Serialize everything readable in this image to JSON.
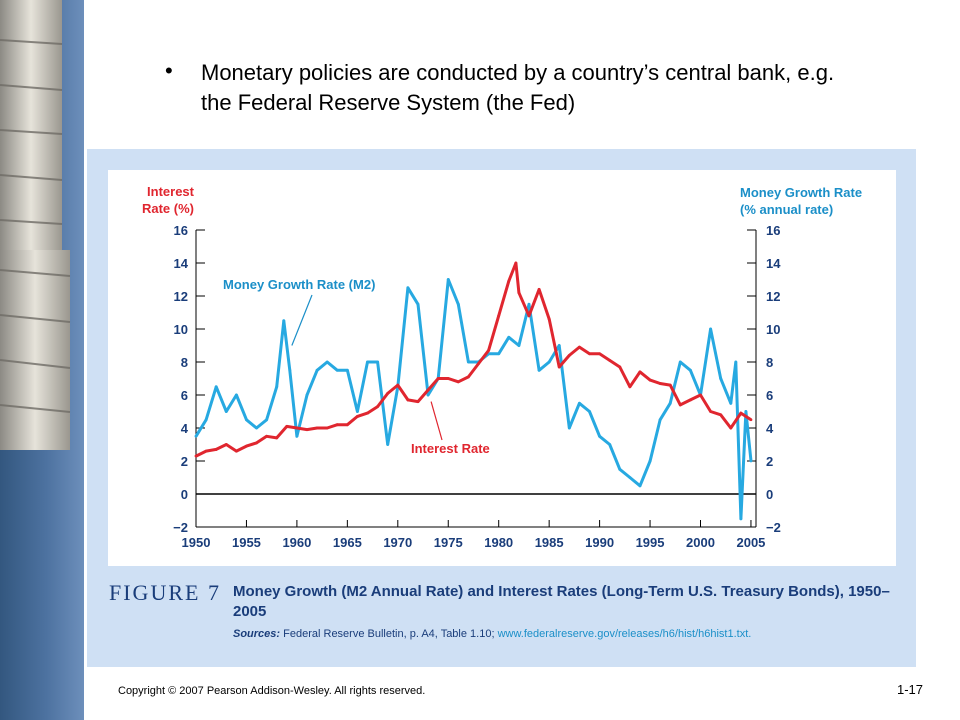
{
  "slide": {
    "bullet": "Monetary policies are conducted by a country’s  central bank, e.g. the Federal Reserve System (the Fed)",
    "copyright": "Copyright © 2007 Pearson Addison-Wesley. All rights reserved.",
    "page_number": "1-17"
  },
  "figure": {
    "label": "FIGURE 7",
    "caption": "Money Growth (M2 Annual Rate) and Interest Rates (Long-Term U.S. Treasury Bonds), 1950–2005",
    "sources_label": "Sources:",
    "sources_text": "Federal Reserve Bulletin, p. A4, Table 1.10;",
    "sources_url": "www.federalreserve.gov/releases/h6/hist/h6hist1.txt."
  },
  "colors": {
    "interest_rate": "#e0262f",
    "money_growth": "#27a9e1",
    "text": "#1a3d7a",
    "panel": "#cfe0f4"
  },
  "chart_data": {
    "type": "line",
    "left_axis_label": [
      "Interest",
      "Rate (%)"
    ],
    "right_axis_label": [
      "Money Growth Rate",
      "(% annual rate)"
    ],
    "y_ticks": [
      "16",
      "14",
      "12",
      "10",
      "8",
      "6",
      "4",
      "2",
      "0",
      "−2"
    ],
    "x_ticks": [
      "1950",
      "1955",
      "1960",
      "1965",
      "1970",
      "1975",
      "1980",
      "1985",
      "1990",
      "1995",
      "2000",
      "2005"
    ],
    "xlim": [
      1950,
      2005.5
    ],
    "ylim": [
      -2,
      16
    ],
    "zero_line": true,
    "series": [
      {
        "name": "Interest Rate",
        "x": [
          1950,
          1951,
          1952,
          1953,
          1954,
          1955,
          1956,
          1957,
          1958,
          1959,
          1960,
          1961,
          1962,
          1963,
          1964,
          1965,
          1966,
          1967,
          1968,
          1969,
          1970,
          1971,
          1972,
          1973,
          1974,
          1975,
          1976,
          1977,
          1978,
          1979,
          1980,
          1981,
          1981.7,
          1982,
          1983,
          1984,
          1985,
          1986,
          1987,
          1988,
          1989,
          1990,
          1991,
          1992,
          1993,
          1994,
          1995,
          1996,
          1997,
          1998,
          1999,
          2000,
          2001,
          2002,
          2003,
          2004,
          2005
        ],
        "values": [
          2.3,
          2.6,
          2.7,
          3.0,
          2.6,
          2.9,
          3.1,
          3.5,
          3.4,
          4.1,
          4.0,
          3.9,
          4.0,
          4.0,
          4.2,
          4.2,
          4.7,
          4.9,
          5.3,
          6.1,
          6.6,
          5.7,
          5.6,
          6.3,
          7.0,
          7.0,
          6.8,
          7.1,
          7.9,
          8.7,
          10.8,
          12.9,
          14.0,
          12.2,
          10.8,
          12.4,
          10.6,
          7.7,
          8.4,
          8.9,
          8.5,
          8.5,
          8.1,
          7.7,
          6.5,
          7.4,
          6.9,
          6.7,
          6.6,
          5.4,
          5.7,
          6.0,
          5.0,
          4.8,
          4.0,
          4.9,
          4.5
        ]
      },
      {
        "name": "Money Growth Rate (M2)",
        "x": [
          1950,
          1951,
          1952,
          1953,
          1954,
          1955,
          1956,
          1957,
          1958,
          1958.7,
          1959.3,
          1960,
          1961,
          1962,
          1963,
          1964,
          1965,
          1966,
          1967,
          1968,
          1969,
          1970,
          1971,
          1972,
          1973,
          1974,
          1975,
          1976,
          1977,
          1978,
          1979,
          1980,
          1981,
          1982,
          1983,
          1984,
          1985,
          1986,
          1987,
          1988,
          1989,
          1990,
          1991,
          1992,
          1993,
          1994,
          1995,
          1996,
          1997,
          1998,
          1999,
          2000,
          2001,
          2002,
          2003,
          2003.5,
          2004,
          2004.5,
          2005
        ],
        "values": [
          3.5,
          4.5,
          6.5,
          5.0,
          6.0,
          4.5,
          4.0,
          4.5,
          6.5,
          10.5,
          7.5,
          3.5,
          6.0,
          7.5,
          8.0,
          7.5,
          7.5,
          5.0,
          8.0,
          8.0,
          3.0,
          6.5,
          12.5,
          11.5,
          6.0,
          7.0,
          13.0,
          11.5,
          8.0,
          8.0,
          8.5,
          8.5,
          9.5,
          9.0,
          11.5,
          7.5,
          8.0,
          9.0,
          4.0,
          5.5,
          5.0,
          3.5,
          3.0,
          1.5,
          1.0,
          0.5,
          2.0,
          4.5,
          5.5,
          8.0,
          7.5,
          6.0,
          10.0,
          7.0,
          5.5,
          8.0,
          -1.5,
          5.0,
          2.0
        ]
      }
    ],
    "annotations": [
      {
        "text": "Money Growth Rate (M2)",
        "points_to_x": 1959.5,
        "points_to_y": 9.0
      },
      {
        "text": "Interest Rate",
        "points_to_x": 1973.3,
        "points_to_y": 5.6
      }
    ]
  }
}
